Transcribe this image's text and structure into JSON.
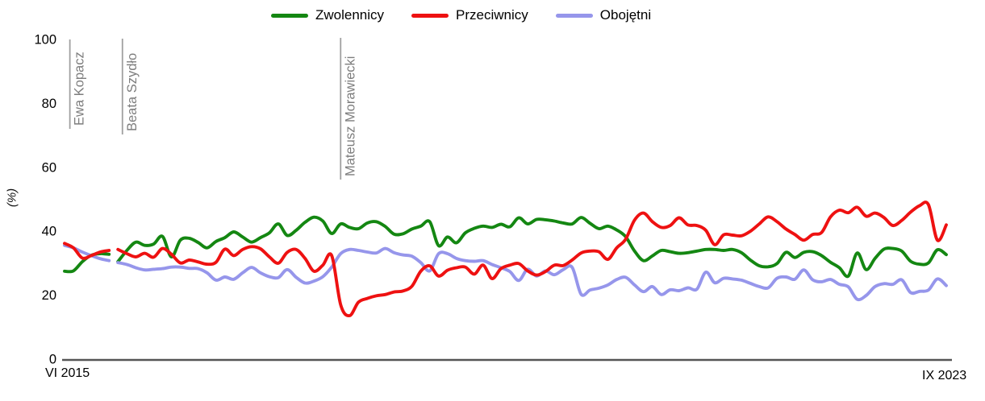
{
  "chart_data": {
    "type": "line",
    "title": "",
    "ylabel": "(%)",
    "xlabel": "",
    "grid": false,
    "legend_position": "top-center",
    "ylim": [
      0,
      100
    ],
    "yticks": [
      0,
      20,
      40,
      60,
      80,
      100
    ],
    "x_axis": {
      "start_label": "VI 2015",
      "end_label": "IX 2023",
      "unit": "month",
      "n_points": 100
    },
    "gap_after_index": 5,
    "draw_order": [
      0,
      2,
      1
    ],
    "series": [
      {
        "name": "Zwolennicy",
        "color": "#148712",
        "values": [
          27.5,
          27.6,
          30.5,
          32.5,
          33,
          32.8,
          30.5,
          34,
          36.6,
          35.6,
          36,
          38.4,
          32,
          37.2,
          37.8,
          36.5,
          34.8,
          36.8,
          38,
          39.8,
          38.2,
          36.6,
          38,
          39.5,
          42.3,
          38.7,
          40.3,
          42.8,
          44.4,
          43.2,
          39.3,
          42.3,
          41.2,
          40.8,
          42.6,
          43,
          41.5,
          39.1,
          39.2,
          40.7,
          41.6,
          43,
          35.5,
          38.2,
          36.4,
          39.5,
          40.9,
          41.6,
          41.2,
          42.2,
          41.4,
          44.2,
          42.3,
          43.7,
          43.6,
          43.2,
          42.6,
          42.3,
          44.3,
          42.5,
          40.8,
          41.6,
          40.4,
          38.3,
          33.8,
          30.8,
          32.3,
          34,
          33.6,
          33.1,
          33.3,
          33.8,
          34.3,
          34.3,
          34,
          34.3,
          33.3,
          31,
          29.2,
          28.9,
          29.9,
          33.4,
          31.8,
          33.4,
          33.6,
          32.4,
          30.3,
          28.6,
          26,
          33.2,
          28,
          31.5,
          34.4,
          34.6,
          33.8,
          30.6,
          29.7,
          30.1,
          34.2,
          32.7
        ]
      },
      {
        "name": "Przeciwnicy",
        "color": "#ee1111",
        "values": [
          36.2,
          34.8,
          31.6,
          32.4,
          33.5,
          34,
          34.3,
          33,
          32,
          33.1,
          31.9,
          34.6,
          32.8,
          30.1,
          31,
          30.4,
          29.7,
          30.3,
          34.4,
          32.4,
          34.3,
          35.2,
          34.5,
          32,
          30,
          33.4,
          34.3,
          31.5,
          27.5,
          29.4,
          32.4,
          17,
          13.6,
          17.8,
          19,
          19.8,
          20.2,
          21,
          21.3,
          22.8,
          27.5,
          29.2,
          26,
          27.8,
          28.6,
          28.8,
          26.6,
          29.4,
          25.2,
          28.3,
          29.4,
          29.9,
          27.6,
          26.3,
          27.4,
          29.4,
          29.3,
          31,
          33.2,
          33.8,
          33.6,
          31.2,
          34.8,
          37.5,
          43.5,
          45.7,
          43,
          41.2,
          41.8,
          44.2,
          42,
          41.8,
          40.3,
          35.8,
          38.9,
          38.8,
          38.6,
          40,
          42.3,
          44.5,
          43,
          40.7,
          39,
          37.2,
          39,
          39.6,
          44.5,
          46.6,
          45.8,
          47.5,
          44.7,
          45.7,
          44.3,
          41.8,
          43.4,
          46,
          48,
          48.3,
          37.2,
          42
        ]
      },
      {
        "name": "Obojętni",
        "color": "#9696eb",
        "values": [
          35.6,
          34.8,
          33.5,
          32.4,
          31.4,
          30.8,
          30.2,
          29.6,
          28.6,
          27.9,
          28.1,
          28.3,
          28.8,
          28.8,
          28.4,
          28.3,
          27,
          24.7,
          25.7,
          25,
          27,
          28.7,
          27,
          25.8,
          25.5,
          28,
          25.6,
          23.8,
          24.4,
          25.8,
          28.8,
          33,
          34.3,
          34,
          33.5,
          33.2,
          34.6,
          33.3,
          32.6,
          32.2,
          30.2,
          27.6,
          33,
          33,
          31.5,
          30.8,
          30.6,
          30.8,
          29.6,
          28.6,
          27.4,
          24.6,
          28.1,
          26,
          27.6,
          26.4,
          28,
          28.7,
          20.3,
          21.6,
          22.2,
          23.2,
          24.9,
          25.6,
          23.2,
          21.1,
          22.7,
          20.2,
          21.7,
          21.4,
          22.3,
          21.9,
          27.2,
          23.9,
          25.3,
          25.1,
          24.7,
          23.7,
          22.7,
          22.3,
          25.3,
          25.7,
          25,
          27.9,
          24.8,
          24.2,
          24.9,
          23.4,
          22.6,
          18.7,
          19.9,
          22.7,
          23.6,
          23.4,
          24.8,
          20.8,
          21.2,
          21.6,
          25.1,
          23
        ]
      }
    ],
    "event_markers": [
      {
        "label": "Ewa Kopacz",
        "month_index": 0.6,
        "line_span": [
          49,
          160
        ]
      },
      {
        "label": "Beata Szydło",
        "month_index": 6.5,
        "line_span": [
          48,
          167
        ]
      },
      {
        "label": "Mateusz Morawiecki",
        "month_index": 31,
        "line_span": [
          47,
          223
        ]
      }
    ],
    "marker_line_color": "#a0a0a0",
    "marker_label_color": "#7d7d7d",
    "axis_line_color": "#555555"
  }
}
